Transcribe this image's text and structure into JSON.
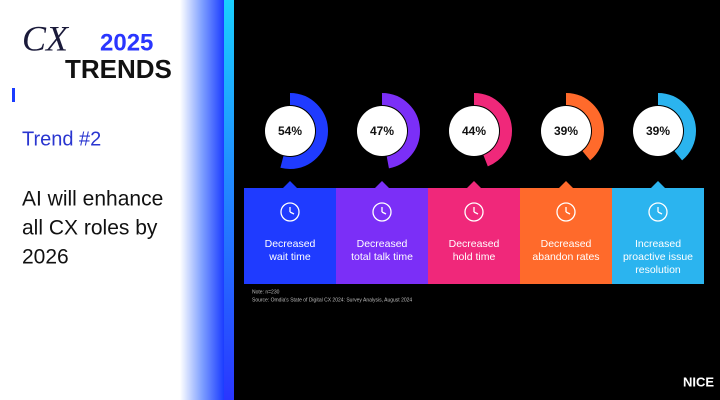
{
  "logo": {
    "script": "CX",
    "year": "2025",
    "word": "TRENDS"
  },
  "trend": "Trend #2",
  "headline": [
    "AI will enhance",
    "all CX roles by",
    "2026"
  ],
  "items": [
    {
      "label": "54%",
      "value": 54,
      "caption": [
        "Decreased",
        "wait time"
      ]
    },
    {
      "label": "47%",
      "value": 47,
      "caption": [
        "Decreased",
        "total talk time"
      ]
    },
    {
      "label": "44%",
      "value": 44,
      "caption": [
        "Decreased",
        "hold time"
      ]
    },
    {
      "label": "39%",
      "value": 39,
      "caption": [
        "Decreased",
        "abandon rates"
      ]
    },
    {
      "label": "39%",
      "value": 39,
      "caption": [
        "Increased",
        "proactive issue",
        "resolution"
      ]
    }
  ],
  "note": [
    "Note: n=230",
    "Source: Omdia's State of Digital CX 2024: Survey Analysis, August 2024"
  ],
  "brand": "NICE"
}
